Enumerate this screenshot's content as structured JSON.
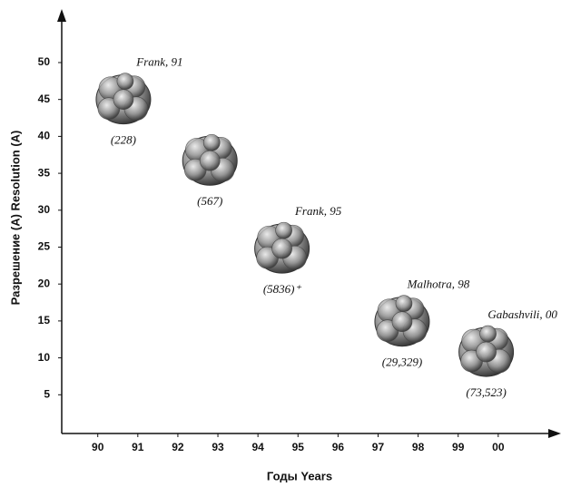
{
  "chart_data": {
    "type": "scatter",
    "xlabel": "Годы   Years",
    "ylabel": "Разрешение (A)  Resolution (A)",
    "xlim": [
      1989.1,
      2001.5
    ],
    "xticks": [
      {
        "value": 1990,
        "label": "90"
      },
      {
        "value": 1991,
        "label": "91"
      },
      {
        "value": 1992,
        "label": "92"
      },
      {
        "value": 1993,
        "label": "93"
      },
      {
        "value": 1994,
        "label": "94"
      },
      {
        "value": 1995,
        "label": "95"
      },
      {
        "value": 1996,
        "label": "96"
      },
      {
        "value": 1997,
        "label": "97"
      },
      {
        "value": 1998,
        "label": "98"
      },
      {
        "value": 1999,
        "label": "99"
      },
      {
        "value": 2000,
        "label": "00"
      }
    ],
    "ylim": [
      0,
      57
    ],
    "yticks": [
      5,
      10,
      15,
      20,
      25,
      30,
      35,
      40,
      45,
      50
    ],
    "x": [
      1990.64,
      1992.8,
      1994.6,
      1997.6,
      1999.7
    ],
    "values": [
      45,
      36.7,
      24.8,
      14.9,
      10.8
    ],
    "point_labels": [
      "(228)",
      "(567)",
      "(5836)⁺",
      "(29,329)",
      "(73,523)"
    ],
    "annotations": [
      "Frank, 91",
      null,
      "Frank, 95",
      "Malhotra, 98",
      "Gabashvili, 00"
    ],
    "color": "#8a8a8a"
  }
}
